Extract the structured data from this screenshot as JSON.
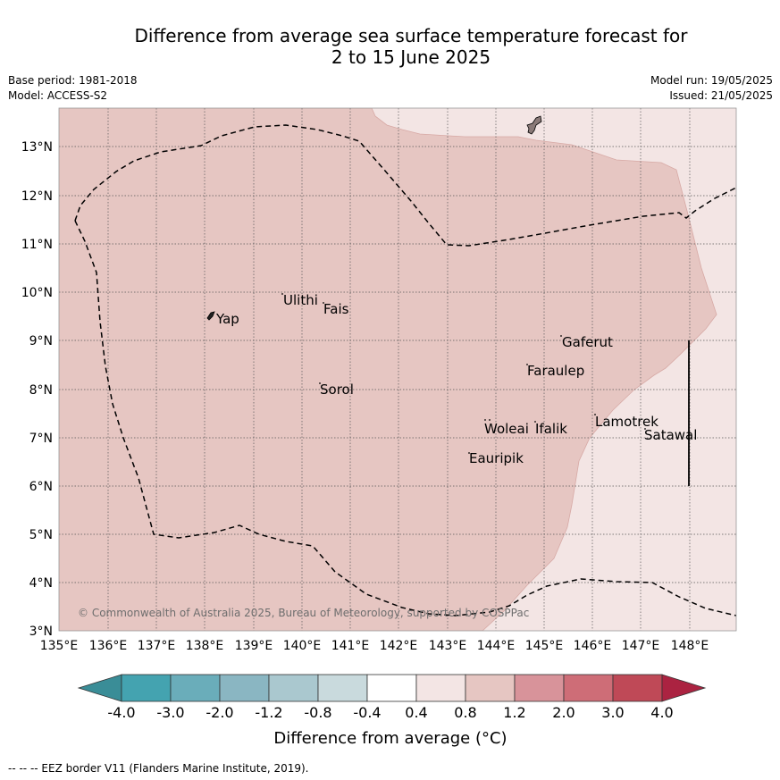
{
  "title": {
    "line1": "Difference from average sea surface temperature forecast for",
    "line2": "2 to 15 June 2025"
  },
  "meta": {
    "base_period": "Base period: 1981-2018",
    "model": "Model: ACCESS-S2",
    "model_run": "Model run: 19/05/2025",
    "issued": "Issued: 21/05/2025"
  },
  "map": {
    "lon_labels": [
      "135°E",
      "136°E",
      "137°E",
      "138°E",
      "139°E",
      "140°E",
      "141°E",
      "142°E",
      "143°E",
      "144°E",
      "145°E",
      "146°E",
      "147°E",
      "148°E"
    ],
    "lat_labels": [
      "3°N",
      "4°N",
      "5°N",
      "6°N",
      "7°N",
      "8°N",
      "9°N",
      "10°N",
      "11°N",
      "12°N",
      "13°N"
    ],
    "places": [
      "Yap",
      "Ulithi",
      "Fais",
      "Gaferut",
      "Faraulep",
      "Sorol",
      "Woleai",
      "Ifalik",
      "Lamotrek",
      "Satawal",
      "Eauripik"
    ],
    "copyright": "© Commonwealth of Australia 2025, Bureau of Meteorology, supported by COSPPac",
    "colors": {
      "class_0.8_1.2": "#e6c6c2",
      "class_0.4_0.8": "#f3e5e4",
      "land": "#8a7a78",
      "eez_line": "#000000"
    }
  },
  "colorbar": {
    "ticks": [
      "-4.0",
      "-3.0",
      "-2.0",
      "-1.2",
      "-0.8",
      "-0.4",
      "0.4",
      "0.8",
      "1.2",
      "2.0",
      "3.0",
      "4.0"
    ],
    "colors": [
      "#3a8d97",
      "#44a3b0",
      "#6aadba",
      "#8ab6c2",
      "#aac8cf",
      "#c9dadd",
      "#ffffff",
      "#f3e5e4",
      "#e6c6c2",
      "#d8939a",
      "#ce6d77",
      "#bf4957",
      "#ab2341"
    ],
    "label": "Difference from average (°C)"
  },
  "footer": "-- -- -- EEZ border V11 (Flanders Marine Institute, 2019)."
}
